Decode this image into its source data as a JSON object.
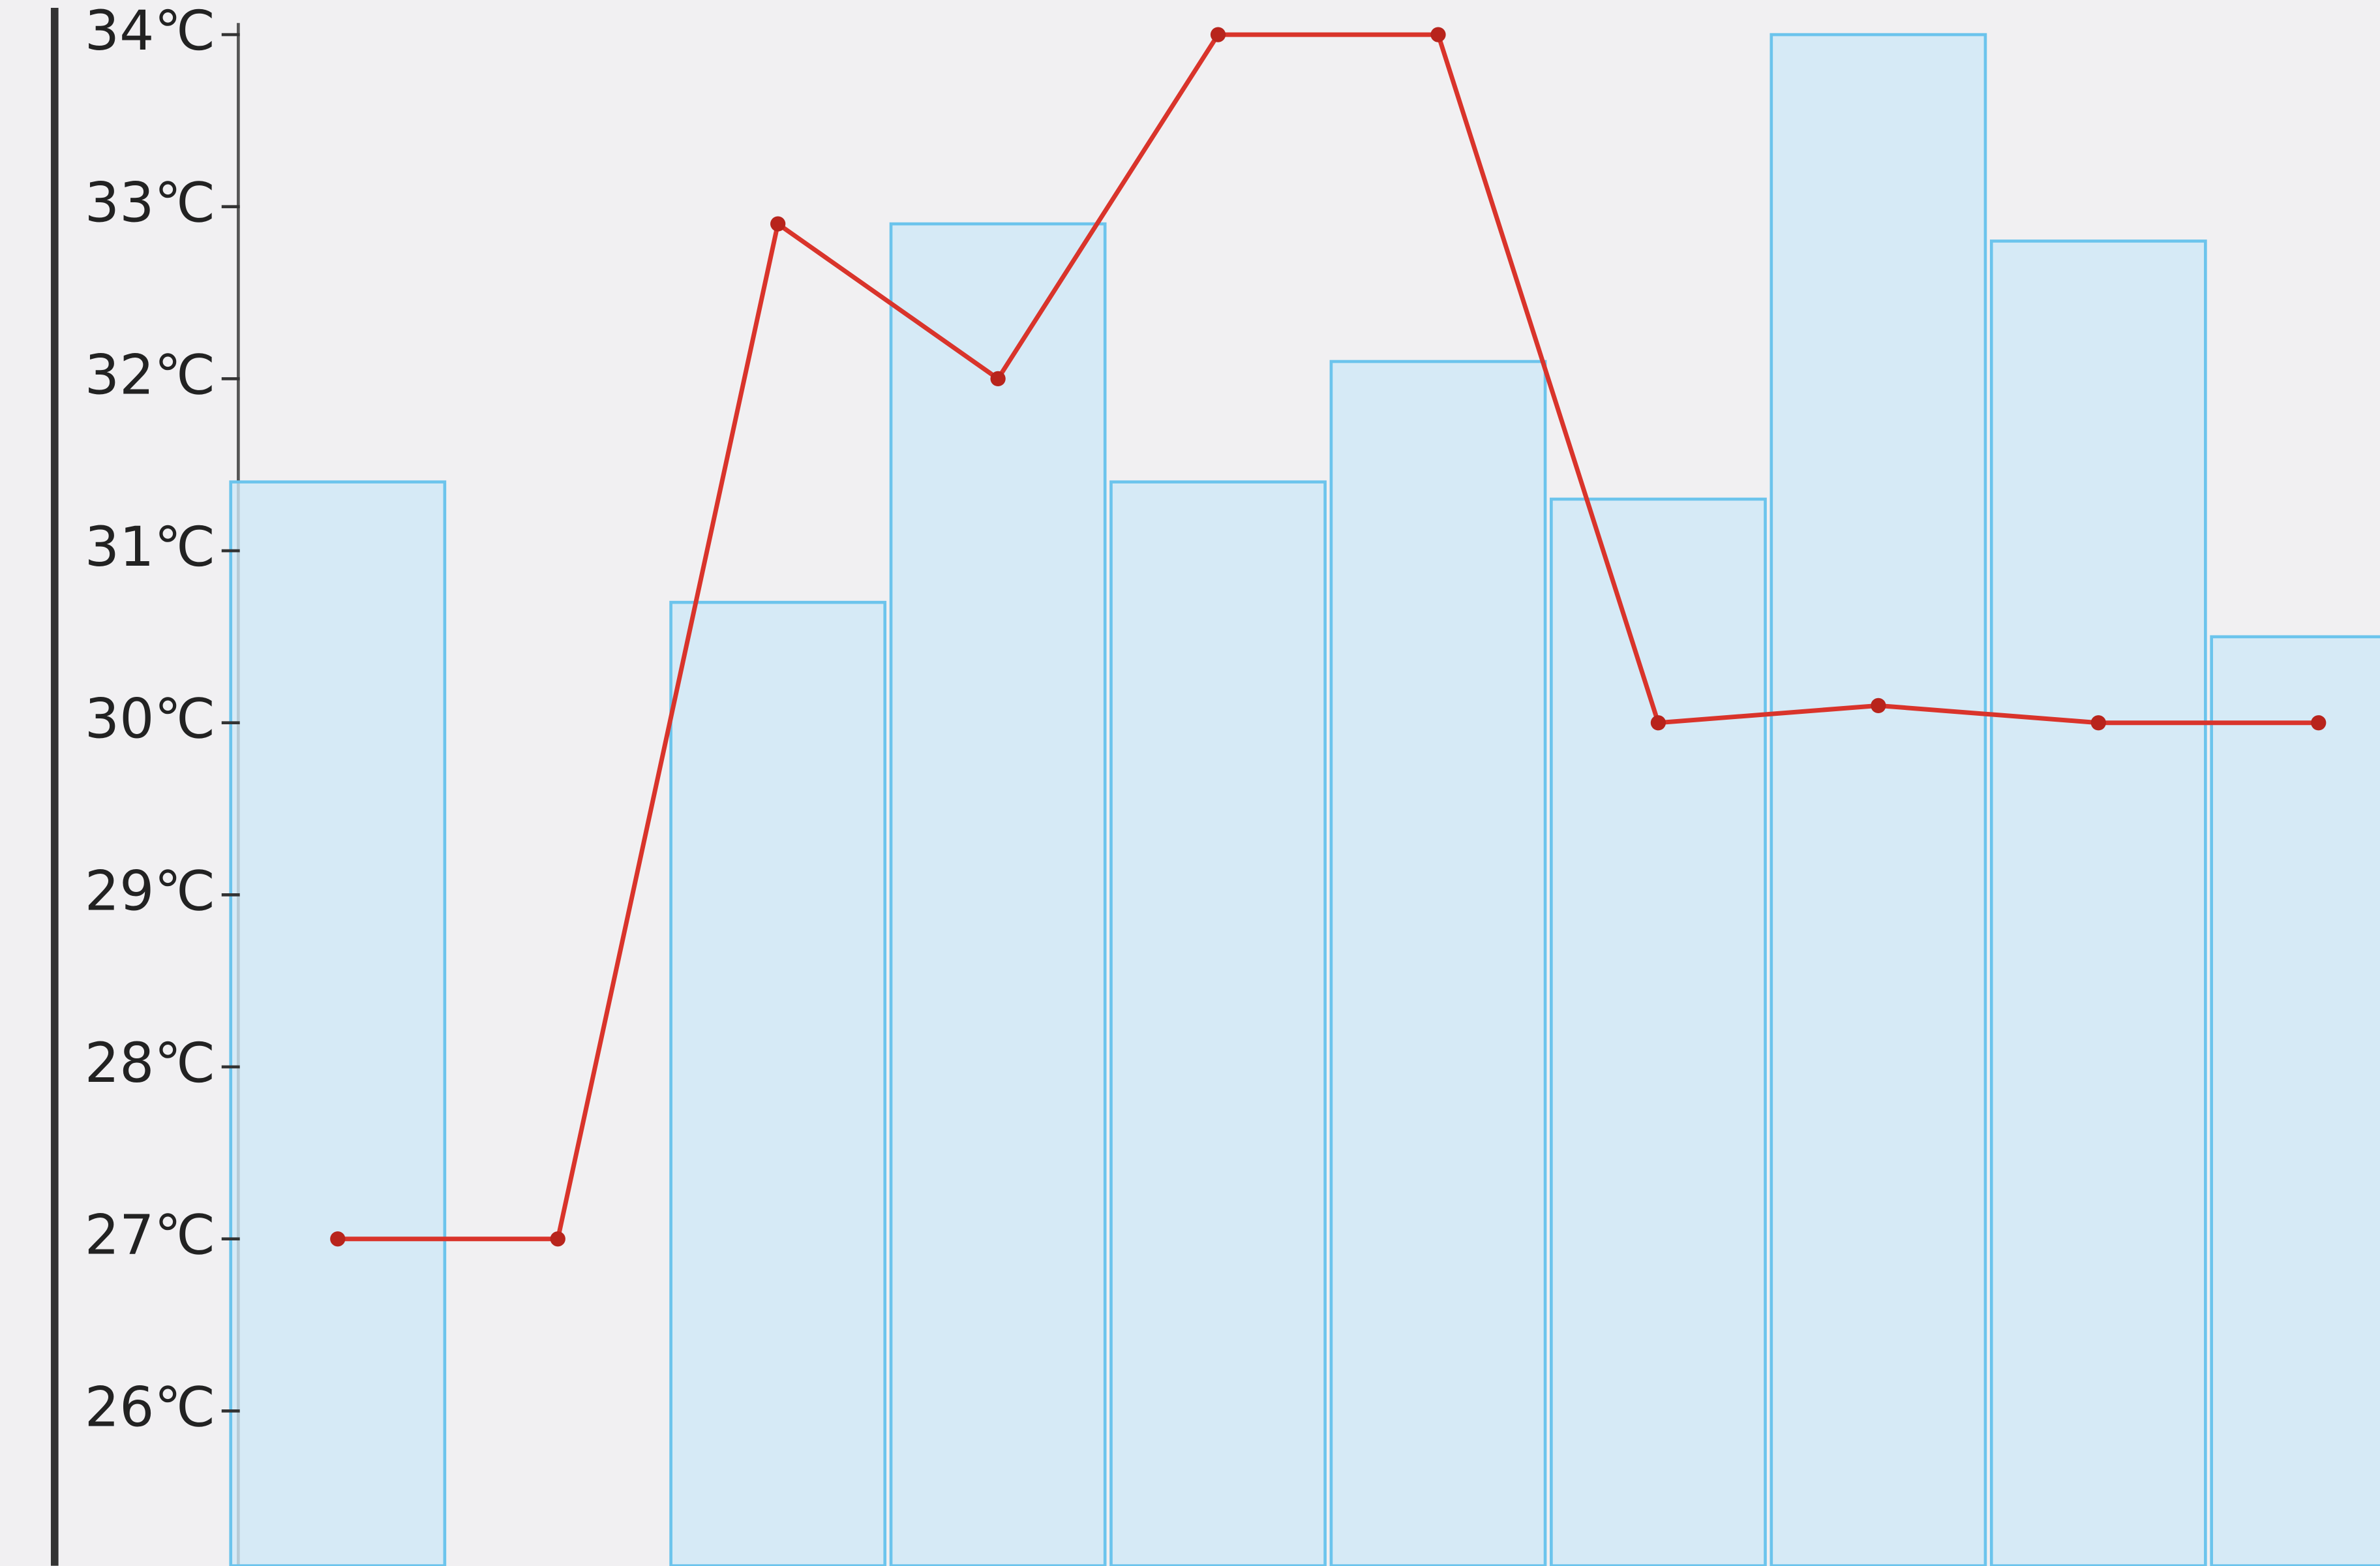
{
  "chart_data": {
    "type": "bar",
    "categories": [
      null,
      null,
      null,
      null,
      null,
      null,
      null,
      null,
      null,
      null
    ],
    "ylim": [
      25.1,
      34.2
    ],
    "yticks": [
      {
        "value": 26,
        "label": "26℃"
      },
      {
        "value": 27,
        "label": "27℃"
      },
      {
        "value": 28,
        "label": "28℃"
      },
      {
        "value": 29,
        "label": "29℃"
      },
      {
        "value": 30,
        "label": "30℃"
      },
      {
        "value": 31,
        "label": "31℃"
      },
      {
        "value": 32,
        "label": "32℃"
      },
      {
        "value": 33,
        "label": "33℃"
      },
      {
        "value": 34,
        "label": "34℃"
      }
    ],
    "series": [
      {
        "type": "bar",
        "color": "#6cc4ec",
        "values": [
          31.4,
          null,
          30.7,
          32.9,
          31.4,
          32.1,
          31.3,
          34.0,
          32.8,
          30.5
        ]
      },
      {
        "type": "line",
        "color": "#d9342b",
        "values": [
          27.0,
          27.0,
          32.9,
          32.0,
          34.0,
          34.0,
          30.0,
          30.1,
          30.0,
          30.0
        ]
      }
    ]
  }
}
